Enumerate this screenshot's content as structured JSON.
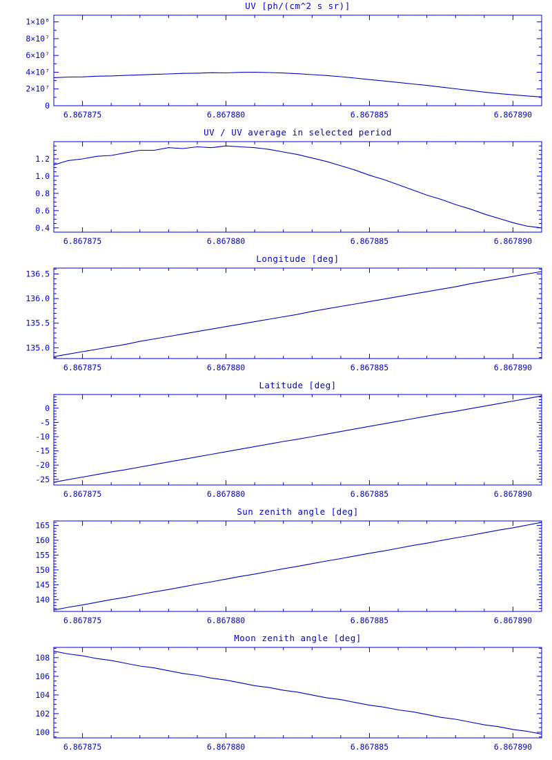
{
  "style": {
    "line_color": "#0000cd",
    "text_color": "#0000cd",
    "background": "#ffffff"
  },
  "chart_data": {
    "type": "line",
    "x_axis": {
      "range": [
        6.867874,
        6.867891
      ],
      "ticks": [
        6.867875,
        6.86788,
        6.867885,
        6.86789
      ],
      "tick_labels": [
        "6.867875",
        "6.867880",
        "6.867885",
        "6.867890"
      ],
      "minor_step": 1e-06
    },
    "x": [
      6.867874,
      6.8678745,
      6.867875,
      6.8678755,
      6.867876,
      6.8678765,
      6.867877,
      6.8678775,
      6.867878,
      6.8678785,
      6.867879,
      6.8678795,
      6.86788,
      6.8678805,
      6.867881,
      6.8678815,
      6.867882,
      6.8678825,
      6.867883,
      6.8678835,
      6.867884,
      6.8678845,
      6.867885,
      6.8678855,
      6.867886,
      6.8678865,
      6.867887,
      6.8678875,
      6.867888,
      6.8678885,
      6.867889,
      6.8678895,
      6.86789,
      6.8678905,
      6.867891
    ],
    "charts": [
      {
        "name": "uv",
        "type": "line",
        "title": "UV [ph/(cm^2 s sr)]",
        "ylim": [
          0,
          108000000.0
        ],
        "yticks": [
          0,
          20000000.0,
          40000000.0,
          60000000.0,
          80000000.0,
          100000000.0
        ],
        "ytick_labels": [
          "0",
          "2×10⁷",
          "4×10⁷",
          "6×10⁷",
          "8×10⁷",
          "1×10⁸"
        ],
        "y_minor_step": 10000000.0,
        "values": [
          33500000.0,
          34200000.0,
          34400000.0,
          35200000.0,
          35500000.0,
          36200000.0,
          36800000.0,
          37400000.0,
          37900000.0,
          38600000.0,
          38800000.0,
          39400000.0,
          39200000.0,
          39800000.0,
          40000000.0,
          39600000.0,
          39000000.0,
          38200000.0,
          37100000.0,
          36000000.0,
          34600000.0,
          33000000.0,
          31200000.0,
          29500000.0,
          27800000.0,
          26000000.0,
          24200000.0,
          22200000.0,
          20200000.0,
          18200000.0,
          16200000.0,
          14500000.0,
          13000000.0,
          11600000.0,
          10500000.0
        ]
      },
      {
        "name": "uv-ratio",
        "type": "line",
        "title": "UV / UV average in selected period",
        "ylim": [
          0.35,
          1.4
        ],
        "yticks": [
          0.4,
          0.6,
          0.8,
          1.0,
          1.2
        ],
        "ytick_labels": [
          "0.4",
          "0.6",
          "0.8",
          "1.0",
          "1.2"
        ],
        "y_minor_step": 0.05,
        "values": [
          1.13,
          1.18,
          1.2,
          1.23,
          1.24,
          1.27,
          1.3,
          1.3,
          1.33,
          1.32,
          1.34,
          1.33,
          1.35,
          1.34,
          1.33,
          1.31,
          1.28,
          1.25,
          1.21,
          1.17,
          1.12,
          1.07,
          1.01,
          0.96,
          0.9,
          0.84,
          0.78,
          0.73,
          0.67,
          0.62,
          0.56,
          0.51,
          0.46,
          0.42,
          0.4
        ]
      },
      {
        "name": "longitude",
        "type": "line",
        "title": "Longitude [deg]",
        "ylim": [
          134.78,
          136.62
        ],
        "yticks": [
          135.0,
          135.5,
          136.0,
          136.5
        ],
        "ytick_labels": [
          "135.0",
          "135.5",
          "136.0",
          "136.5"
        ],
        "y_minor_step": 0.1,
        "values": [
          134.82,
          134.87,
          134.92,
          134.97,
          135.02,
          135.07,
          135.13,
          135.18,
          135.23,
          135.28,
          135.33,
          135.38,
          135.43,
          135.48,
          135.53,
          135.58,
          135.63,
          135.68,
          135.74,
          135.79,
          135.84,
          135.89,
          135.94,
          135.99,
          136.04,
          136.09,
          136.14,
          136.19,
          136.24,
          136.3,
          136.35,
          136.4,
          136.45,
          136.5,
          136.55
        ]
      },
      {
        "name": "latitude",
        "type": "line",
        "title": "Latitude [deg]",
        "ylim": [
          -27,
          4.8
        ],
        "yticks": [
          -25,
          -20,
          -15,
          -10,
          -5,
          0
        ],
        "ytick_labels": [
          "-25",
          "-20",
          "-15",
          "-10",
          "-5",
          "0"
        ],
        "y_minor_step": 1,
        "values": [
          -26.0,
          -25.1,
          -24.2,
          -23.3,
          -22.4,
          -21.6,
          -20.7,
          -19.8,
          -18.9,
          -18.0,
          -17.1,
          -16.2,
          -15.3,
          -14.4,
          -13.5,
          -12.6,
          -11.7,
          -10.9,
          -10.0,
          -9.1,
          -8.2,
          -7.3,
          -6.4,
          -5.5,
          -4.6,
          -3.7,
          -2.8,
          -1.9,
          -1.1,
          -0.2,
          0.7,
          1.6,
          2.5,
          3.4,
          4.3
        ]
      },
      {
        "name": "sun-zenith-angle",
        "type": "line",
        "title": "Sun zenith angle [deg]",
        "ylim": [
          136.0,
          166.5
        ],
        "yticks": [
          140,
          145,
          150,
          155,
          160,
          165
        ],
        "ytick_labels": [
          "140",
          "145",
          "150",
          "155",
          "160",
          "165"
        ],
        "y_minor_step": 1,
        "values": [
          136.5,
          137.4,
          138.2,
          139.1,
          140.0,
          140.8,
          141.7,
          142.6,
          143.4,
          144.3,
          145.2,
          146.0,
          146.9,
          147.8,
          148.6,
          149.5,
          150.4,
          151.2,
          152.1,
          153.0,
          153.8,
          154.7,
          155.6,
          156.4,
          157.3,
          158.2,
          159.0,
          159.9,
          160.8,
          161.6,
          162.5,
          163.4,
          164.2,
          165.1,
          166.0
        ]
      },
      {
        "name": "moon-zenith-angle",
        "type": "line",
        "title": "Moon zenith angle [deg]",
        "ylim": [
          99.4,
          109.1
        ],
        "yticks": [
          100,
          102,
          104,
          106,
          108
        ],
        "ytick_labels": [
          "100",
          "102",
          "104",
          "106",
          "108"
        ],
        "y_minor_step": 0.5,
        "values": [
          108.7,
          108.4,
          108.2,
          107.9,
          107.7,
          107.4,
          107.1,
          106.9,
          106.6,
          106.3,
          106.1,
          105.8,
          105.6,
          105.3,
          105.0,
          104.8,
          104.5,
          104.3,
          104.0,
          103.7,
          103.5,
          103.2,
          102.9,
          102.7,
          102.4,
          102.2,
          101.9,
          101.6,
          101.4,
          101.1,
          100.8,
          100.6,
          100.3,
          100.1,
          99.8
        ]
      }
    ]
  }
}
